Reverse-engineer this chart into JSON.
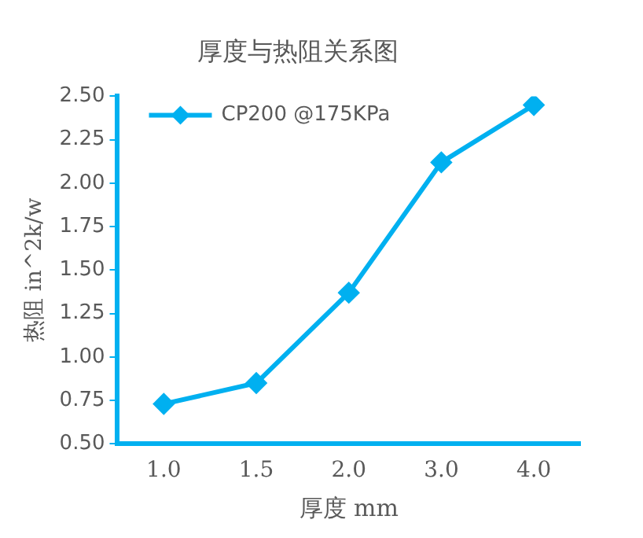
{
  "chart_data": {
    "type": "line",
    "title": "厚度与热阻关系图",
    "xlabel": "厚度 mm",
    "ylabel": "热阻 in^2k/w",
    "categories": [
      "1.0",
      "1.5",
      "2.0",
      "3.0",
      "4.0"
    ],
    "series": [
      {
        "name": "CP200 @175KPa",
        "color": "#00b0f0",
        "values": [
          0.73,
          0.85,
          1.37,
          2.12,
          2.45
        ]
      }
    ],
    "ylim": [
      0.5,
      2.5
    ],
    "yticks": [
      {
        "value": 0.5,
        "label": "0.50"
      },
      0.75,
      {
        "value": 1,
        "label": "1.00"
      },
      1.25,
      {
        "value": 1.5,
        "label": "1.50"
      },
      1.75,
      {
        "value": 2,
        "label": "2.00"
      },
      2.25,
      {
        "value": 2.5,
        "label": "2.50"
      }
    ],
    "grid": false,
    "legend": "top left",
    "marker": "diamond",
    "line_style": "solid"
  }
}
